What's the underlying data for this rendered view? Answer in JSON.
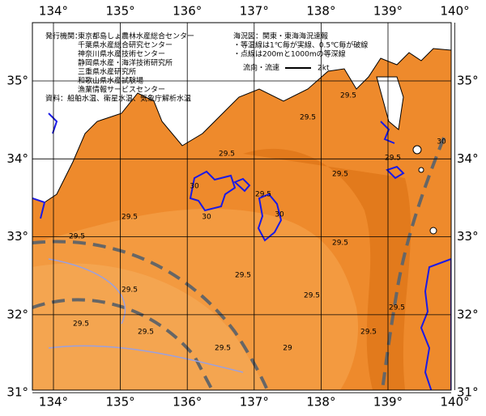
{
  "header": {
    "issuer_label": "発行機関：",
    "issuers": [
      "東京都島しょ農林水産総合センター",
      "千葉県水産総合研究センター",
      "神奈川県水産技術センター",
      "静岡県水産・海洋技術研究所",
      "三重県水産研究所",
      "和歌山県水産試験場",
      "漁業情報サービスセンター"
    ],
    "sources": "資料：船舶水温、衛星水温、気象庁解析水温",
    "map_title": "海況図：関東・東海海況速報",
    "notes": [
      "・等温線は1℃毎が実線、0.5℃毎が破線",
      "・点線は200mと1000mの等深線"
    ],
    "current_legend": "流向・流速",
    "current_scale": "2kt"
  },
  "map": {
    "lon_ticks": [
      {
        "value": 134,
        "label": "134°"
      },
      {
        "value": 135,
        "label": "135°"
      },
      {
        "value": 136,
        "label": "136°"
      },
      {
        "value": 137,
        "label": "137°"
      },
      {
        "value": 138,
        "label": "138°"
      },
      {
        "value": 139,
        "label": "139°"
      },
      {
        "value": 140,
        "label": "140°"
      }
    ],
    "lat_ticks": [
      {
        "value": 31,
        "label": "31°"
      },
      {
        "value": 32,
        "label": "32°"
      },
      {
        "value": 33,
        "label": "33°"
      },
      {
        "value": 34,
        "label": "34°"
      },
      {
        "value": 35,
        "label": "35°"
      }
    ],
    "contour_labels": [
      "29.5",
      "29.5",
      "29.5",
      "29.5",
      "30",
      "30",
      "30",
      "29.5",
      "29.5",
      "29.5",
      "29.5",
      "29.5",
      "29",
      "29.5",
      "29.5",
      "29.5",
      "29.5",
      "29.5",
      "29.5",
      "29.5",
      "30",
      "29.5"
    ]
  }
}
